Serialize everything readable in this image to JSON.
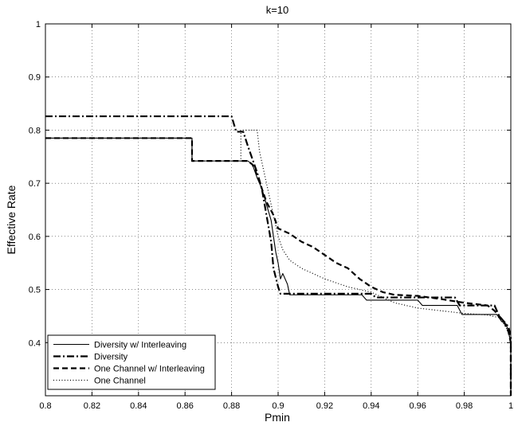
{
  "chart_data": {
    "type": "line",
    "title": "k=10",
    "xlabel": "Pmin",
    "ylabel": "Effective Rate",
    "xlim": [
      0.8,
      1.0
    ],
    "ylim": [
      0.3,
      1.0
    ],
    "xticks": [
      0.8,
      0.82,
      0.84,
      0.86,
      0.88,
      0.9,
      0.92,
      0.94,
      0.96,
      0.98,
      1.0
    ],
    "xtick_labels": [
      "0.8",
      "0.82",
      "0.84",
      "0.86",
      "0.88",
      "0.9",
      "0.92",
      "0.94",
      "0.96",
      "0.98",
      "1"
    ],
    "yticks": [
      0.4,
      0.5,
      0.6,
      0.7,
      0.8,
      0.9,
      1.0
    ],
    "ytick_labels": [
      "0.4",
      "0.5",
      "0.6",
      "0.7",
      "0.8",
      "0.9",
      "1"
    ],
    "grid": true,
    "legend_position": "bottom-left",
    "series": [
      {
        "name": "Diversity w/ Interleaving",
        "style": "solid",
        "width": 1.1,
        "color": "#000000",
        "points": [
          [
            0.8,
            0.785
          ],
          [
            0.863,
            0.785
          ],
          [
            0.863,
            0.742
          ],
          [
            0.887,
            0.742
          ],
          [
            0.889,
            0.735
          ],
          [
            0.891,
            0.71
          ],
          [
            0.893,
            0.69
          ],
          [
            0.895,
            0.66
          ],
          [
            0.897,
            0.63
          ],
          [
            0.898,
            0.6
          ],
          [
            0.899,
            0.57
          ],
          [
            0.9,
            0.55
          ],
          [
            0.901,
            0.52
          ],
          [
            0.902,
            0.53
          ],
          [
            0.904,
            0.51
          ],
          [
            0.905,
            0.49
          ],
          [
            0.936,
            0.49
          ],
          [
            0.938,
            0.48
          ],
          [
            0.96,
            0.48
          ],
          [
            0.962,
            0.47
          ],
          [
            0.977,
            0.47
          ],
          [
            0.979,
            0.453
          ],
          [
            0.994,
            0.453
          ],
          [
            0.996,
            0.44
          ],
          [
            0.998,
            0.435
          ],
          [
            0.999,
            0.42
          ],
          [
            1.0,
            0.4
          ],
          [
            1.0,
            0.3
          ]
        ]
      },
      {
        "name": "Diversity",
        "style": "dashdot",
        "width": 2.2,
        "color": "#000000",
        "points": [
          [
            0.8,
            0.826
          ],
          [
            0.88,
            0.826
          ],
          [
            0.882,
            0.797
          ],
          [
            0.885,
            0.797
          ],
          [
            0.887,
            0.77
          ],
          [
            0.889,
            0.745
          ],
          [
            0.891,
            0.72
          ],
          [
            0.893,
            0.69
          ],
          [
            0.895,
            0.64
          ],
          [
            0.897,
            0.59
          ],
          [
            0.898,
            0.54
          ],
          [
            0.9,
            0.505
          ],
          [
            0.901,
            0.492
          ],
          [
            0.94,
            0.492
          ],
          [
            0.942,
            0.485
          ],
          [
            0.976,
            0.485
          ],
          [
            0.978,
            0.47
          ],
          [
            0.993,
            0.47
          ],
          [
            0.995,
            0.45
          ],
          [
            0.997,
            0.44
          ],
          [
            0.999,
            0.43
          ],
          [
            1.0,
            0.41
          ],
          [
            1.0,
            0.3
          ]
        ]
      },
      {
        "name": "One Channel w/ Interleaving",
        "style": "dashed",
        "width": 2.2,
        "color": "#000000",
        "points": [
          [
            0.8,
            0.785
          ],
          [
            0.863,
            0.785
          ],
          [
            0.863,
            0.742
          ],
          [
            0.887,
            0.742
          ],
          [
            0.889,
            0.735
          ],
          [
            0.891,
            0.715
          ],
          [
            0.893,
            0.69
          ],
          [
            0.895,
            0.665
          ],
          [
            0.898,
            0.64
          ],
          [
            0.9,
            0.615
          ],
          [
            0.905,
            0.605
          ],
          [
            0.91,
            0.59
          ],
          [
            0.915,
            0.58
          ],
          [
            0.92,
            0.565
          ],
          [
            0.925,
            0.55
          ],
          [
            0.93,
            0.54
          ],
          [
            0.935,
            0.52
          ],
          [
            0.94,
            0.505
          ],
          [
            0.945,
            0.495
          ],
          [
            0.95,
            0.49
          ],
          [
            0.96,
            0.488
          ],
          [
            0.97,
            0.482
          ],
          [
            0.98,
            0.475
          ],
          [
            0.99,
            0.47
          ],
          [
            0.993,
            0.46
          ],
          [
            0.995,
            0.45
          ],
          [
            0.997,
            0.44
          ],
          [
            0.999,
            0.42
          ],
          [
            1.0,
            0.4
          ],
          [
            1.0,
            0.3
          ]
        ]
      },
      {
        "name": "One Channel",
        "style": "dotted",
        "width": 1.2,
        "color": "#000000",
        "points": [
          [
            0.8,
            0.785
          ],
          [
            0.863,
            0.785
          ],
          [
            0.863,
            0.742
          ],
          [
            0.884,
            0.742
          ],
          [
            0.884,
            0.8
          ],
          [
            0.891,
            0.8
          ],
          [
            0.892,
            0.76
          ],
          [
            0.894,
            0.72
          ],
          [
            0.896,
            0.68
          ],
          [
            0.898,
            0.64
          ],
          [
            0.9,
            0.6
          ],
          [
            0.902,
            0.575
          ],
          [
            0.905,
            0.555
          ],
          [
            0.91,
            0.54
          ],
          [
            0.915,
            0.53
          ],
          [
            0.92,
            0.52
          ],
          [
            0.93,
            0.505
          ],
          [
            0.94,
            0.495
          ],
          [
            0.945,
            0.485
          ],
          [
            0.95,
            0.475
          ],
          [
            0.96,
            0.465
          ],
          [
            0.97,
            0.46
          ],
          [
            0.98,
            0.455
          ],
          [
            0.99,
            0.452
          ],
          [
            0.995,
            0.447
          ],
          [
            0.997,
            0.435
          ],
          [
            0.999,
            0.42
          ],
          [
            1.0,
            0.4
          ],
          [
            1.0,
            0.3
          ]
        ]
      }
    ]
  }
}
